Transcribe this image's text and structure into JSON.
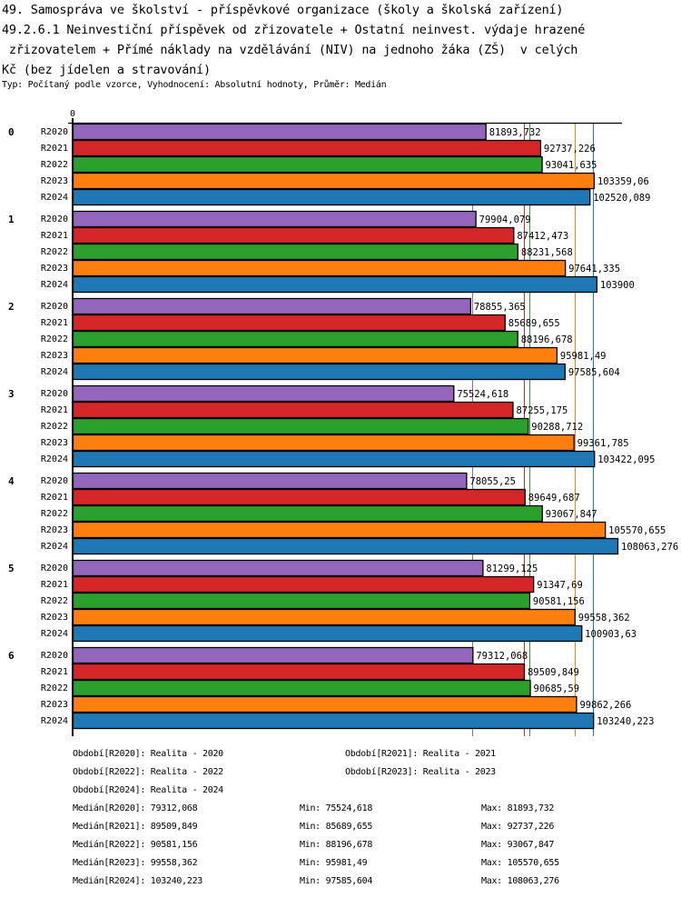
{
  "header": {
    "title_lines": [
      "49. Samospráva ve školství - příspěvkové organizace (školy a školská zařízení)",
      "49.2.6.1 Neinvestiční příspěvek od zřizovatele + Ostatní neinvest. výdaje hrazené",
      " zřizovatelem + Přímé náklady na vzdělávání (NIV) na jednoho žáka (ZŠ)  v celých",
      "Kč (bez jídelen a stravování)"
    ],
    "subtitle": "Typ: Počítaný podle vzorce, Vyhodnocení: Absolutní hodnoty, Průměr: Medián"
  },
  "chart_data": {
    "type": "bar",
    "orientation": "horizontal",
    "title": "49.2.6.1 Neinvestiční příspěvek od zřizovatele + Ostatní neinvest. výdaje hrazené zřizovatelem + Přímé náklady na vzdělávání (NIV) na jednoho žáka (ZŠ) v celých Kč (bez jídelen a stravování)",
    "axis_zero_label": "0",
    "xlim": [
      0,
      109000
    ],
    "categories": [
      "0",
      "1",
      "2",
      "3",
      "4",
      "5",
      "6"
    ],
    "series": [
      {
        "name": "R2020",
        "color": "#9467bd",
        "values": [
          81893.732,
          79904.079,
          78855.365,
          75524.618,
          78055.25,
          81299.125,
          79312.068
        ],
        "labels": [
          "81893,732",
          "79904,079",
          "78855,365",
          "75524,618",
          "78055,25",
          "81299,125",
          "79312,068"
        ]
      },
      {
        "name": "R2021",
        "color": "#d62728",
        "values": [
          92737.226,
          87412.473,
          85689.655,
          87255.175,
          89649.687,
          91347.69,
          89509.849
        ],
        "labels": [
          "92737,226",
          "87412,473",
          "85689,655",
          "87255,175",
          "89649,687",
          "91347,69",
          "89509,849"
        ]
      },
      {
        "name": "R2022",
        "color": "#2ca02c",
        "values": [
          93041.635,
          88231.568,
          88196.678,
          90288.712,
          93067.847,
          90581.156,
          90685.59
        ],
        "labels": [
          "93041,635",
          "88231,568",
          "88196,678",
          "90288,712",
          "93067,847",
          "90581,156",
          "90685,59"
        ]
      },
      {
        "name": "R2023",
        "color": "#ff7f0e",
        "values": [
          103359.06,
          97641.335,
          95981.49,
          99361.785,
          105570.655,
          99558.362,
          99862.266
        ],
        "labels": [
          "103359,06",
          "97641,335",
          "95981,49",
          "99361,785",
          "105570,655",
          "99558,362",
          "99862,266"
        ]
      },
      {
        "name": "R2024",
        "color": "#1f77b4",
        "values": [
          102520.089,
          103900,
          97585.604,
          103422.095,
          108063.276,
          100903.63,
          103240.223
        ],
        "labels": [
          "102520,089",
          "103900",
          "97585,604",
          "103422,095",
          "108063,276",
          "100903,63",
          "103240,223"
        ]
      }
    ],
    "medians": [
      79312.068,
      89509.849,
      90581.156,
      99558.362,
      103240.223
    ]
  },
  "legend": {
    "periods": [
      "Období[R2020]: Realita - 2020",
      "Období[R2021]: Realita - 2021",
      "Období[R2022]: Realita - 2022",
      "Období[R2023]: Realita - 2023",
      "Období[R2024]: Realita - 2024"
    ],
    "stats": [
      {
        "median": "Medián[R2020]: 79312,068",
        "min": "Min: 75524,618",
        "max": "Max: 81893,732"
      },
      {
        "median": "Medián[R2021]: 89509,849",
        "min": "Min: 85689,655",
        "max": "Max: 92737,226"
      },
      {
        "median": "Medián[R2022]: 90581,156",
        "min": "Min: 88196,678",
        "max": "Max: 93067,847"
      },
      {
        "median": "Medián[R2023]: 99558,362",
        "min": "Min: 95981,49",
        "max": "Max: 105570,655"
      },
      {
        "median": "Medián[R2024]: 103240,223",
        "min": "Min: 97585,604",
        "max": "Max: 108063,276"
      }
    ]
  }
}
